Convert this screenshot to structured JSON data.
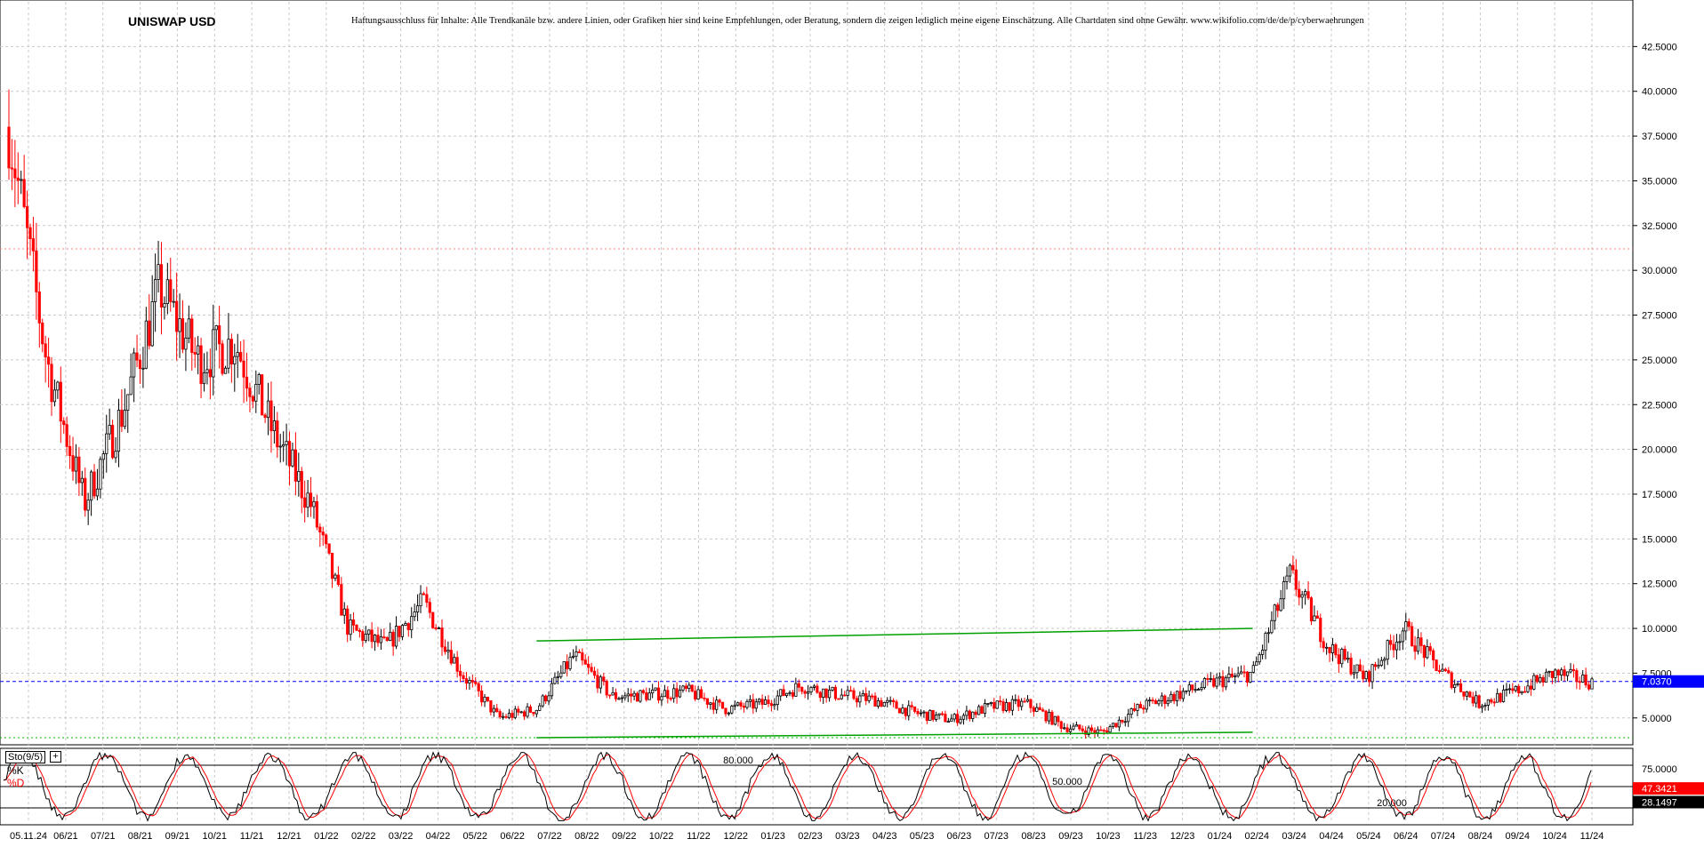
{
  "chart_data": [
    {
      "type": "candlestick",
      "title": "UNISWAP USD",
      "note": "Haftungsausschluss für Inhalte: Alle Trendkanäle bzw. andere Linien, oder Grafiken hier sind keine Empfehlungen, oder Beratung, sondern die zeigen lediglich meine eigene Einschätzung. Alle Chartdaten sind ohne Gewähr.  www.wikifolio.com/de/de/p/cyberwaehrungen",
      "ylim": [
        3.5,
        45
      ],
      "y_ticks": [
        "42.5000",
        "40.0000",
        "37.5000",
        "35.0000",
        "32.5000",
        "30.0000",
        "27.5000",
        "25.0000",
        "22.5000",
        "20.0000",
        "17.5000",
        "15.0000",
        "12.5000",
        "10.0000",
        "7.5000",
        "5.0000"
      ],
      "x_tick_labels": [
        "05.11.24",
        "06/21",
        "07/21",
        "08/21",
        "09/21",
        "10/21",
        "11/21",
        "12/21",
        "01/22",
        "02/22",
        "03/22",
        "04/22",
        "05/22",
        "06/22",
        "07/22",
        "08/22",
        "09/22",
        "10/22",
        "11/22",
        "12/22",
        "01/23",
        "02/23",
        "03/23",
        "04/23",
        "05/23",
        "06/23",
        "07/23",
        "08/23",
        "09/23",
        "10/23",
        "11/23",
        "12/23",
        "01/24",
        "02/24",
        "03/24",
        "04/24",
        "05/24",
        "06/24",
        "07/24",
        "08/24",
        "09/24",
        "10/24",
        "11/24"
      ],
      "series": [
        {
          "name": "Price",
          "x": [
            "05/21",
            "06/21",
            "07/21",
            "08/21",
            "09/21",
            "10/21",
            "11/21",
            "12/21",
            "01/22",
            "02/22",
            "03/22",
            "04/22",
            "05/22",
            "06/22",
            "07/22",
            "08/22",
            "09/22",
            "10/22",
            "11/22",
            "12/22",
            "01/23",
            "02/23",
            "03/23",
            "04/23",
            "05/23",
            "06/23",
            "07/23",
            "08/23",
            "09/23",
            "10/23",
            "11/23",
            "12/23",
            "01/24",
            "02/24",
            "03/24",
            "04/24",
            "05/24",
            "06/24",
            "07/24",
            "08/24",
            "09/24",
            "10/24",
            "11/24"
          ],
          "values": [
            38.0,
            25.0,
            17.0,
            22.0,
            29.0,
            25.0,
            26.0,
            21.0,
            17.0,
            10.0,
            9.0,
            11.5,
            7.5,
            5.0,
            5.5,
            8.5,
            6.2,
            6.3,
            6.5,
            5.5,
            5.8,
            6.8,
            6.3,
            6.0,
            5.3,
            4.9,
            5.6,
            5.8,
            4.5,
            4.2,
            5.6,
            6.3,
            7.0,
            7.5,
            13.0,
            9.0,
            7.2,
            10.0,
            7.6,
            5.8,
            6.5,
            7.5,
            7.0
          ]
        }
      ],
      "last_price": "7.0370",
      "last_price_color": "#0000ff",
      "up_color": "#000000",
      "down_color": "#ff0000",
      "trend_lines": [
        {
          "color": "#00a000",
          "from": [
            "07/22",
            9.3
          ],
          "to": [
            "02/24",
            10.0
          ]
        },
        {
          "color": "#00a000",
          "from": [
            "07/22",
            3.9
          ],
          "to": [
            "02/24",
            4.2
          ]
        }
      ],
      "reference_lines": [
        {
          "value": 31.2,
          "color": "#ff8080",
          "style": "dotted"
        },
        {
          "value": 7.037,
          "color": "#0000ff",
          "style": "dashed"
        },
        {
          "value": 3.9,
          "color": "#00c000",
          "style": "dotted"
        }
      ],
      "grid": true
    },
    {
      "type": "line",
      "title": "Sto(9/5)",
      "ylim": [
        0,
        100
      ],
      "levels": [
        {
          "value": 80,
          "label": "80.000"
        },
        {
          "value": 50,
          "label": "50.000"
        },
        {
          "value": 20,
          "label": "20.000"
        }
      ],
      "series": [
        {
          "name": "%K",
          "color": "#000000",
          "last": "28.1497"
        },
        {
          "name": "%D",
          "color": "#ff0000",
          "last": "47.3421"
        }
      ],
      "grid": true
    }
  ],
  "ui": {
    "plus_glyph": "+"
  }
}
